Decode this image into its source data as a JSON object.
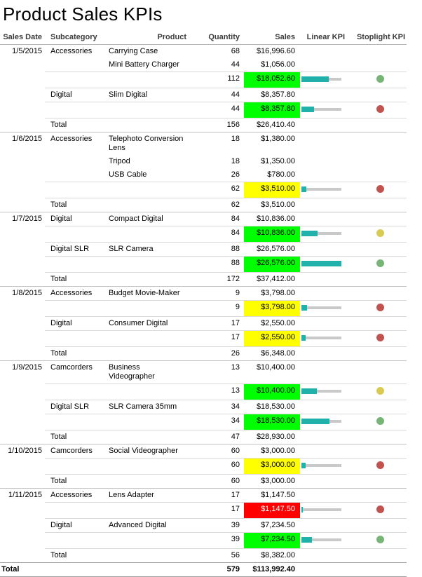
{
  "title": "Product Sales KPIs",
  "colors": {
    "sales_good_bg": "#00ff00",
    "sales_warning_bg": "#ffff00",
    "sales_bad_bg": "#ff0000",
    "gauge_fill": "#20b2aa",
    "gauge_track": "#c9c9c9",
    "stoplight_green": "#77b577",
    "stoplight_yellow": "#d9cb50",
    "stoplight_red": "#c2524e"
  },
  "table": {
    "headers": [
      "Sales Date",
      "Subcategory",
      "Product",
      "Quantity",
      "Sales",
      "Linear KPI",
      "Stoplight KPI"
    ],
    "rows": [
      {
        "date": "1/5/2015",
        "subcategory": "Accessories",
        "product": "Carrying Case",
        "quantity": "68",
        "sales": "$16,996.60",
        "border": "full"
      },
      {
        "product": "Mini Battery Charger",
        "quantity": "44",
        "sales": "$1,056.00",
        "border": "none"
      },
      {
        "quantity": "112",
        "sales": "$18,052.60",
        "sales_bg": "green",
        "linear_kpi_pct": 68,
        "stoplight": "green",
        "border": "partial"
      },
      {
        "subcategory": "Digital",
        "product": "Slim Digital",
        "quantity": "44",
        "sales": "$8,357.80",
        "border": "partial"
      },
      {
        "quantity": "44",
        "sales": "$8,357.80",
        "sales_bg": "green",
        "linear_kpi_pct": 31,
        "stoplight": "red",
        "border": "partial"
      },
      {
        "subcategory": "Total",
        "quantity": "156",
        "sales": "$26,410.40",
        "border": "partial"
      },
      {
        "date": "1/6/2015",
        "subcategory": "Accessories",
        "product": "Telephoto Conversion Lens",
        "quantity": "18",
        "sales": "$1,380.00",
        "border": "full"
      },
      {
        "product": "Tripod",
        "quantity": "18",
        "sales": "$1,350.00",
        "border": "none"
      },
      {
        "product": "USB Cable",
        "quantity": "26",
        "sales": "$780.00",
        "border": "none"
      },
      {
        "quantity": "62",
        "sales": "$3,510.00",
        "sales_bg": "yellow",
        "linear_kpi_pct": 13,
        "stoplight": "red",
        "border": "partial"
      },
      {
        "subcategory": "Total",
        "quantity": "62",
        "sales": "$3,510.00",
        "border": "partial"
      },
      {
        "date": "1/7/2015",
        "subcategory": "Digital",
        "product": "Compact Digital",
        "quantity": "84",
        "sales": "$10,836.00",
        "border": "full"
      },
      {
        "quantity": "84",
        "sales": "$10,836.00",
        "sales_bg": "green",
        "linear_kpi_pct": 41,
        "stoplight": "yellow",
        "border": "partial"
      },
      {
        "subcategory": "Digital SLR",
        "product": "SLR Camera",
        "quantity": "88",
        "sales": "$26,576.00",
        "border": "partial"
      },
      {
        "quantity": "88",
        "sales": "$26,576.00",
        "sales_bg": "green",
        "linear_kpi_pct": 100,
        "stoplight": "green",
        "border": "partial"
      },
      {
        "subcategory": "Total",
        "quantity": "172",
        "sales": "$37,412.00",
        "border": "partial"
      },
      {
        "date": "1/8/2015",
        "subcategory": "Accessories",
        "product": "Budget Movie-Maker",
        "quantity": "9",
        "sales": "$3,798.00",
        "border": "full"
      },
      {
        "quantity": "9",
        "sales": "$3,798.00",
        "sales_bg": "yellow",
        "linear_kpi_pct": 14,
        "stoplight": "red",
        "border": "partial"
      },
      {
        "subcategory": "Digital",
        "product": "Consumer Digital",
        "quantity": "17",
        "sales": "$2,550.00",
        "border": "partial"
      },
      {
        "quantity": "17",
        "sales": "$2,550.00",
        "sales_bg": "yellow",
        "linear_kpi_pct": 10,
        "stoplight": "red",
        "border": "partial"
      },
      {
        "subcategory": "Total",
        "quantity": "26",
        "sales": "$6,348.00",
        "border": "partial"
      },
      {
        "date": "1/9/2015",
        "subcategory": "Camcorders",
        "product": "Business Videographer",
        "quantity": "13",
        "sales": "$10,400.00",
        "border": "full"
      },
      {
        "quantity": "13",
        "sales": "$10,400.00",
        "sales_bg": "green",
        "linear_kpi_pct": 39,
        "stoplight": "yellow",
        "border": "partial"
      },
      {
        "subcategory": "Digital SLR",
        "product": "SLR Camera 35mm",
        "quantity": "34",
        "sales": "$18,530.00",
        "border": "partial"
      },
      {
        "quantity": "34",
        "sales": "$18,530.00",
        "sales_bg": "green",
        "linear_kpi_pct": 70,
        "stoplight": "green",
        "border": "partial"
      },
      {
        "subcategory": "Total",
        "quantity": "47",
        "sales": "$28,930.00",
        "border": "partial"
      },
      {
        "date": "1/10/2015",
        "subcategory": "Camcorders",
        "product": "Social Videographer",
        "quantity": "60",
        "sales": "$3,000.00",
        "border": "full"
      },
      {
        "quantity": "60",
        "sales": "$3,000.00",
        "sales_bg": "yellow",
        "linear_kpi_pct": 11,
        "stoplight": "red",
        "border": "partial"
      },
      {
        "subcategory": "Total",
        "quantity": "60",
        "sales": "$3,000.00",
        "border": "partial"
      },
      {
        "date": "1/11/2015",
        "subcategory": "Accessories",
        "product": "Lens Adapter",
        "quantity": "17",
        "sales": "$1,147.50",
        "border": "full"
      },
      {
        "quantity": "17",
        "sales": "$1,147.50",
        "sales_bg": "red",
        "linear_kpi_pct": 4,
        "stoplight": "red",
        "border": "partial"
      },
      {
        "subcategory": "Digital",
        "product": "Advanced Digital",
        "quantity": "39",
        "sales": "$7,234.50",
        "border": "partial"
      },
      {
        "quantity": "39",
        "sales": "$7,234.50",
        "sales_bg": "green",
        "linear_kpi_pct": 27,
        "stoplight": "green",
        "border": "partial"
      },
      {
        "subcategory": "Total",
        "quantity": "56",
        "sales": "$8,382.00",
        "border": "partial"
      },
      {
        "date": "Total",
        "quantity": "579",
        "sales": "$113,992.40",
        "border": "full",
        "grand_total": true
      }
    ]
  }
}
